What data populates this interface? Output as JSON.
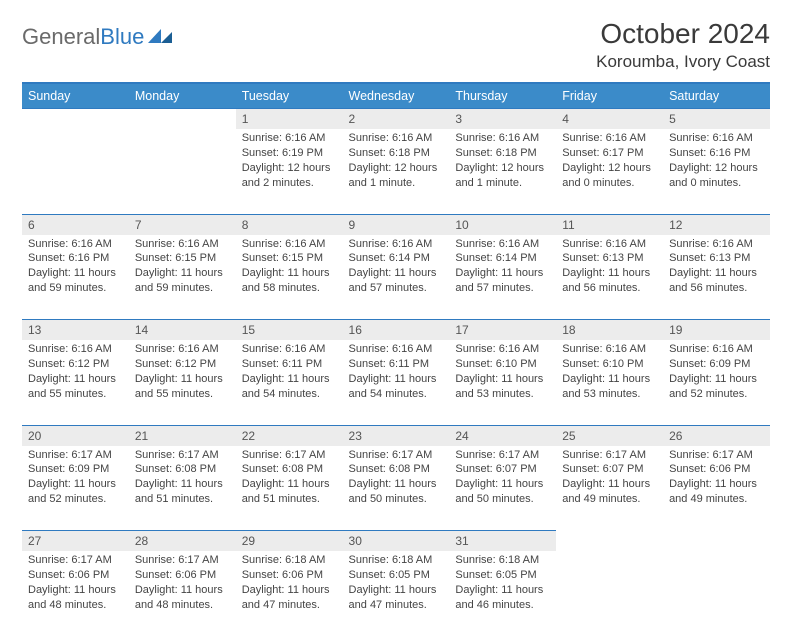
{
  "logo": {
    "text1": "General",
    "text2": "Blue"
  },
  "title": "October 2024",
  "location": "Koroumba, Ivory Coast",
  "colors": {
    "header_bg": "#3b8bc9",
    "header_border": "#2f7ac0",
    "daynum_bg": "#ececec",
    "text": "#333333"
  },
  "weekdays": [
    "Sunday",
    "Monday",
    "Tuesday",
    "Wednesday",
    "Thursday",
    "Friday",
    "Saturday"
  ],
  "weeks": [
    [
      null,
      null,
      {
        "n": "1",
        "sr": "6:16 AM",
        "ss": "6:19 PM",
        "dl": "12 hours and 2 minutes."
      },
      {
        "n": "2",
        "sr": "6:16 AM",
        "ss": "6:18 PM",
        "dl": "12 hours and 1 minute."
      },
      {
        "n": "3",
        "sr": "6:16 AM",
        "ss": "6:18 PM",
        "dl": "12 hours and 1 minute."
      },
      {
        "n": "4",
        "sr": "6:16 AM",
        "ss": "6:17 PM",
        "dl": "12 hours and 0 minutes."
      },
      {
        "n": "5",
        "sr": "6:16 AM",
        "ss": "6:16 PM",
        "dl": "12 hours and 0 minutes."
      }
    ],
    [
      {
        "n": "6",
        "sr": "6:16 AM",
        "ss": "6:16 PM",
        "dl": "11 hours and 59 minutes."
      },
      {
        "n": "7",
        "sr": "6:16 AM",
        "ss": "6:15 PM",
        "dl": "11 hours and 59 minutes."
      },
      {
        "n": "8",
        "sr": "6:16 AM",
        "ss": "6:15 PM",
        "dl": "11 hours and 58 minutes."
      },
      {
        "n": "9",
        "sr": "6:16 AM",
        "ss": "6:14 PM",
        "dl": "11 hours and 57 minutes."
      },
      {
        "n": "10",
        "sr": "6:16 AM",
        "ss": "6:14 PM",
        "dl": "11 hours and 57 minutes."
      },
      {
        "n": "11",
        "sr": "6:16 AM",
        "ss": "6:13 PM",
        "dl": "11 hours and 56 minutes."
      },
      {
        "n": "12",
        "sr": "6:16 AM",
        "ss": "6:13 PM",
        "dl": "11 hours and 56 minutes."
      }
    ],
    [
      {
        "n": "13",
        "sr": "6:16 AM",
        "ss": "6:12 PM",
        "dl": "11 hours and 55 minutes."
      },
      {
        "n": "14",
        "sr": "6:16 AM",
        "ss": "6:12 PM",
        "dl": "11 hours and 55 minutes."
      },
      {
        "n": "15",
        "sr": "6:16 AM",
        "ss": "6:11 PM",
        "dl": "11 hours and 54 minutes."
      },
      {
        "n": "16",
        "sr": "6:16 AM",
        "ss": "6:11 PM",
        "dl": "11 hours and 54 minutes."
      },
      {
        "n": "17",
        "sr": "6:16 AM",
        "ss": "6:10 PM",
        "dl": "11 hours and 53 minutes."
      },
      {
        "n": "18",
        "sr": "6:16 AM",
        "ss": "6:10 PM",
        "dl": "11 hours and 53 minutes."
      },
      {
        "n": "19",
        "sr": "6:16 AM",
        "ss": "6:09 PM",
        "dl": "11 hours and 52 minutes."
      }
    ],
    [
      {
        "n": "20",
        "sr": "6:17 AM",
        "ss": "6:09 PM",
        "dl": "11 hours and 52 minutes."
      },
      {
        "n": "21",
        "sr": "6:17 AM",
        "ss": "6:08 PM",
        "dl": "11 hours and 51 minutes."
      },
      {
        "n": "22",
        "sr": "6:17 AM",
        "ss": "6:08 PM",
        "dl": "11 hours and 51 minutes."
      },
      {
        "n": "23",
        "sr": "6:17 AM",
        "ss": "6:08 PM",
        "dl": "11 hours and 50 minutes."
      },
      {
        "n": "24",
        "sr": "6:17 AM",
        "ss": "6:07 PM",
        "dl": "11 hours and 50 minutes."
      },
      {
        "n": "25",
        "sr": "6:17 AM",
        "ss": "6:07 PM",
        "dl": "11 hours and 49 minutes."
      },
      {
        "n": "26",
        "sr": "6:17 AM",
        "ss": "6:06 PM",
        "dl": "11 hours and 49 minutes."
      }
    ],
    [
      {
        "n": "27",
        "sr": "6:17 AM",
        "ss": "6:06 PM",
        "dl": "11 hours and 48 minutes."
      },
      {
        "n": "28",
        "sr": "6:17 AM",
        "ss": "6:06 PM",
        "dl": "11 hours and 48 minutes."
      },
      {
        "n": "29",
        "sr": "6:18 AM",
        "ss": "6:06 PM",
        "dl": "11 hours and 47 minutes."
      },
      {
        "n": "30",
        "sr": "6:18 AM",
        "ss": "6:05 PM",
        "dl": "11 hours and 47 minutes."
      },
      {
        "n": "31",
        "sr": "6:18 AM",
        "ss": "6:05 PM",
        "dl": "11 hours and 46 minutes."
      },
      null,
      null
    ]
  ]
}
